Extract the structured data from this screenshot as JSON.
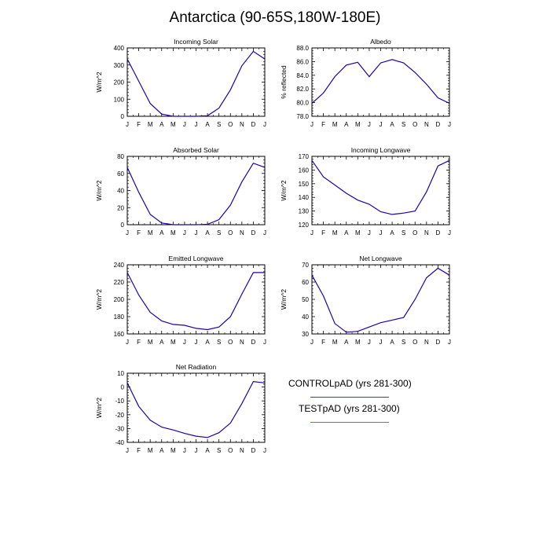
{
  "page": {
    "title": "Antarctica (90-65S,180W-180E)"
  },
  "months": [
    "J",
    "F",
    "M",
    "A",
    "M",
    "J",
    "J",
    "A",
    "S",
    "O",
    "N",
    "D",
    "J"
  ],
  "legend": {
    "entries": [
      {
        "label": "CONTROLpAD (yrs 281-300)",
        "color": "#3333ee"
      },
      {
        "label": "TESTpAD (yrs 281-300)",
        "color": "#ee4444"
      }
    ]
  },
  "chart_data": [
    {
      "type": "line",
      "title": "Incoming Solar",
      "ylabel": "W/m^2",
      "ylim": [
        0,
        400
      ],
      "yticks": [
        0,
        100,
        200,
        300,
        400
      ],
      "ytick_labels": [
        "0",
        "100",
        "200",
        "300",
        "400"
      ],
      "series": [
        {
          "values": [
            335,
            205,
            75,
            13,
            0,
            0,
            0,
            3,
            48,
            155,
            295,
            380,
            335
          ]
        }
      ]
    },
    {
      "type": "line",
      "title": "Albedo",
      "ylabel": "% reflected",
      "ylim": [
        78,
        88
      ],
      "yticks": [
        78,
        80,
        82,
        84,
        86,
        88
      ],
      "ytick_labels": [
        "78.0",
        "80.0",
        "82.0",
        "84.0",
        "86.0",
        "88.0"
      ],
      "series": [
        {
          "values": [
            79.9,
            81.4,
            83.8,
            85.5,
            85.9,
            83.8,
            85.8,
            86.3,
            85.8,
            84.4,
            82.7,
            80.7,
            79.9
          ]
        }
      ]
    },
    {
      "type": "line",
      "title": "Absorbed Solar",
      "ylabel": "W/m^2",
      "ylim": [
        0,
        80
      ],
      "yticks": [
        0,
        20,
        40,
        60,
        80
      ],
      "ytick_labels": [
        "0",
        "20",
        "40",
        "60",
        "80"
      ],
      "series": [
        {
          "values": [
            67,
            38,
            12,
            2,
            0,
            0,
            0,
            0.5,
            6,
            23,
            50,
            72,
            67
          ]
        }
      ]
    },
    {
      "type": "line",
      "title": "Incoming Longwave",
      "ylabel": "W/m^2",
      "ylim": [
        120,
        170
      ],
      "yticks": [
        120,
        130,
        140,
        150,
        160,
        170
      ],
      "ytick_labels": [
        "120",
        "130",
        "140",
        "150",
        "160",
        "170"
      ],
      "series": [
        {
          "values": [
            167,
            155,
            149,
            143,
            138,
            135,
            129.5,
            127.5,
            128.5,
            130,
            144,
            163,
            167
          ]
        }
      ]
    },
    {
      "type": "line",
      "title": "Emitted Longwave",
      "ylabel": "W/m^2",
      "ylim": [
        160,
        240
      ],
      "yticks": [
        160,
        180,
        200,
        220,
        240
      ],
      "ytick_labels": [
        "160",
        "180",
        "200",
        "220",
        "240"
      ],
      "series": [
        {
          "values": [
            231,
            205,
            185,
            175,
            171,
            170,
            166.5,
            165,
            168,
            180,
            206,
            231,
            231
          ]
        }
      ]
    },
    {
      "type": "line",
      "title": "Net Longwave",
      "ylabel": "W/m^2",
      "ylim": [
        30,
        70
      ],
      "yticks": [
        30,
        40,
        50,
        60,
        70
      ],
      "ytick_labels": [
        "30",
        "40",
        "50",
        "60",
        "70"
      ],
      "series": [
        {
          "values": [
            64,
            52,
            36,
            31,
            31.5,
            34,
            36.5,
            38,
            39.5,
            50,
            62.5,
            68,
            64
          ]
        }
      ]
    },
    {
      "type": "line",
      "title": "Net Radiation",
      "ylabel": "W/m^2",
      "ylim": [
        -40,
        10
      ],
      "yticks": [
        -40,
        -30,
        -20,
        -10,
        0,
        10
      ],
      "ytick_labels": [
        "-40",
        "-30",
        "-20",
        "-10",
        "0",
        "10"
      ],
      "series": [
        {
          "values": [
            3,
            -14,
            -24,
            -29,
            -31,
            -33.5,
            -35.5,
            -36.5,
            -33,
            -26,
            -12,
            4,
            3
          ]
        }
      ]
    }
  ]
}
